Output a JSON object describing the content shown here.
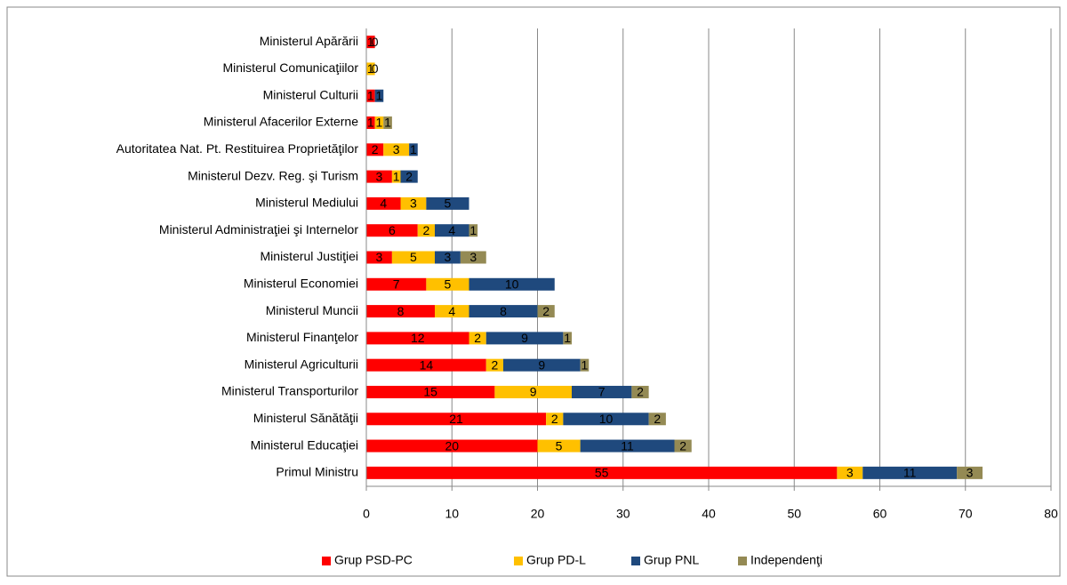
{
  "chart_data": {
    "type": "bar",
    "orientation": "horizontal",
    "stacked": true,
    "categories": [
      "Ministerul Apărării",
      "Ministerul Comunicaţiilor",
      "Ministerul Culturii",
      "Ministerul Afacerilor Externe",
      "Autoritatea Nat. Pt. Restituirea Proprietăţilor",
      "Ministerul Dezv. Reg. şi Turism",
      "Ministerul Mediului",
      "Ministerul Administraţiei şi Internelor",
      "Ministerul Justiţiei",
      "Ministerul Economiei",
      "Ministerul Muncii",
      "Ministerul Finanţelor",
      "Ministerul Agriculturii",
      "Ministerul Transporturilor",
      "Ministerul Sănătăţii",
      "Ministerul Educaţiei",
      "Primul Ministru"
    ],
    "series": [
      {
        "name": "Grup PSD-PC",
        "color": "#ff0000",
        "values": [
          1,
          null,
          1,
          1,
          2,
          3,
          4,
          6,
          3,
          7,
          8,
          12,
          14,
          15,
          21,
          20,
          55
        ]
      },
      {
        "name": "Grup PD-L",
        "color": "#ffc000",
        "values": [
          0,
          1,
          null,
          1,
          3,
          1,
          3,
          2,
          5,
          5,
          4,
          2,
          2,
          9,
          2,
          5,
          3
        ]
      },
      {
        "name": "Grup PNL",
        "color": "#1f497d",
        "values": [
          null,
          0,
          1,
          null,
          1,
          2,
          5,
          4,
          3,
          10,
          8,
          9,
          9,
          7,
          10,
          11,
          11
        ]
      },
      {
        "name": "Independenţi",
        "color": "#948a54",
        "values": [
          null,
          null,
          null,
          1,
          null,
          null,
          null,
          1,
          3,
          null,
          2,
          1,
          1,
          2,
          2,
          2,
          3
        ]
      }
    ],
    "xlim": [
      0,
      80
    ],
    "xticks": [
      0,
      10,
      20,
      30,
      40,
      50,
      60,
      70,
      80
    ],
    "grid": true,
    "legend": "bottom"
  }
}
